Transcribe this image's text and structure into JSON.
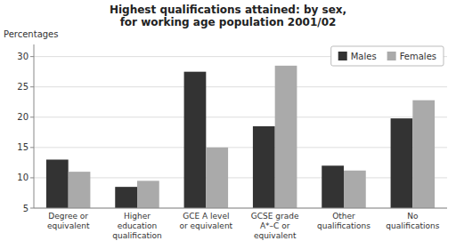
{
  "chart_data": {
    "type": "bar",
    "title": "Highest qualifications attained: by sex,\nfor working age population 2001/02",
    "ylabel": "Percentages",
    "categories": [
      "Degree or\nequivalent",
      "Higher\neducation\nqualification",
      "GCE A level\nor equivalent",
      "GCSE grade\nA*–C or\nequivalent",
      "Other\nqualifications",
      "No\nqualifications"
    ],
    "series": [
      {
        "name": "Males",
        "color": "#333333",
        "values": [
          13.0,
          8.5,
          27.5,
          18.5,
          12.0,
          19.8
        ]
      },
      {
        "name": "Females",
        "color": "#aaaaaa",
        "values": [
          11.0,
          9.5,
          15.0,
          28.5,
          11.2,
          22.8
        ]
      }
    ],
    "ylim": [
      5,
      32
    ],
    "yticks": [
      5,
      10,
      15,
      20,
      25,
      30
    ],
    "grid": true,
    "legend": "upper right"
  }
}
